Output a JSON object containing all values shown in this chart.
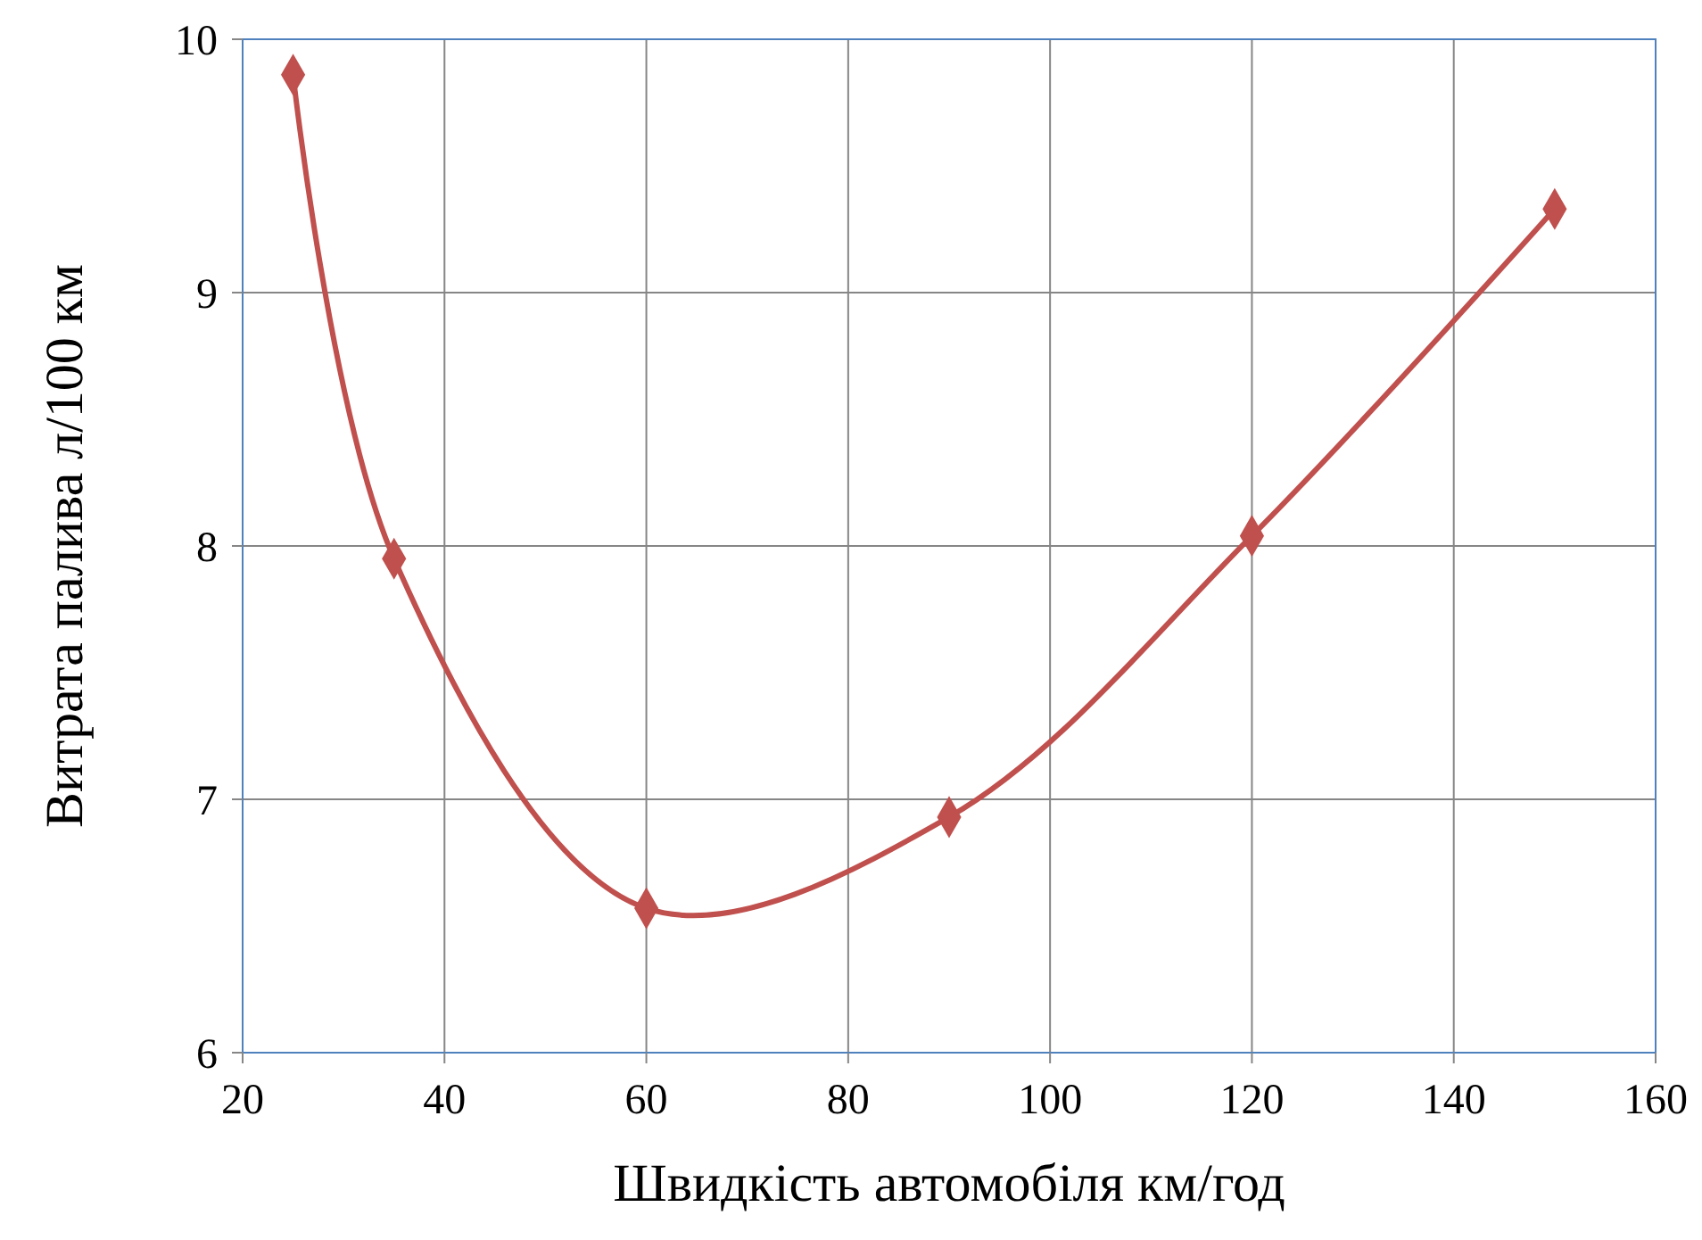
{
  "chart_data": {
    "type": "line",
    "xlabel": "Швидкість автомобіля км/год",
    "ylabel": "Витрата палива л/100 км",
    "x": [
      25,
      35,
      60,
      90,
      120,
      150
    ],
    "series": [
      {
        "color": "#c0504d",
        "values": [
          9.86,
          7.95,
          6.57,
          6.93,
          8.04,
          9.33
        ]
      }
    ],
    "xlim": [
      20,
      160
    ],
    "xticks": [
      20,
      40,
      60,
      80,
      100,
      120,
      140,
      160
    ],
    "ylim": [
      6,
      10
    ],
    "yticks": [
      6,
      7,
      8,
      9,
      10
    ],
    "grid": true,
    "marker": "diamond",
    "line_style": "solid"
  }
}
